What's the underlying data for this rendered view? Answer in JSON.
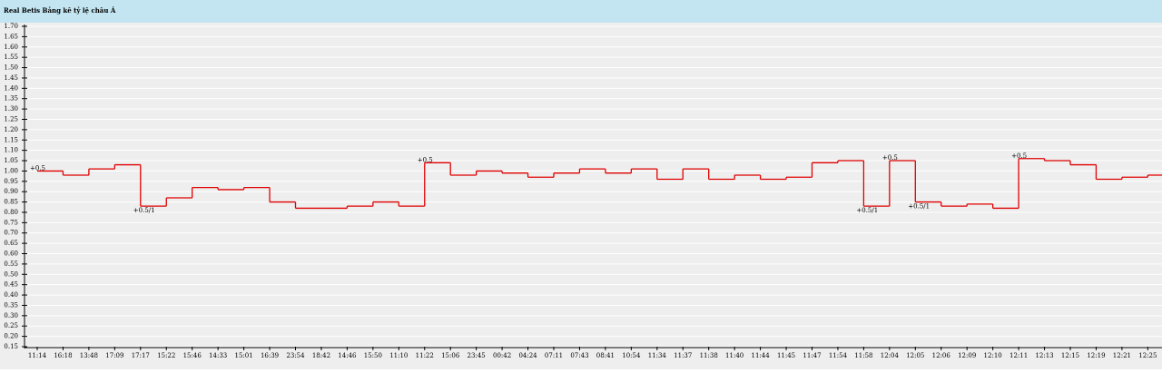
{
  "chart_data": {
    "type": "step-line",
    "title": "Real Betis Bảng kê tỷ lệ châu Á",
    "categories": [
      "11:14",
      "16:18",
      "13:48",
      "17:09",
      "17:17",
      "15:22",
      "15:46",
      "14:33",
      "15:01",
      "16:39",
      "23:54",
      "18:42",
      "14:46",
      "15:50",
      "11:10",
      "11:22",
      "15:06",
      "23:45",
      "00:42",
      "04:24",
      "07:11",
      "07:43",
      "08:41",
      "10:54",
      "11:34",
      "11:37",
      "11:38",
      "11:40",
      "11:44",
      "11:45",
      "11:47",
      "11:54",
      "11:58",
      "12:04",
      "12:05",
      "12:06",
      "12:09",
      "12:10",
      "12:11",
      "12:13",
      "12:15",
      "12:19",
      "12:21",
      "12:25"
    ],
    "values": [
      1.0,
      0.98,
      1.01,
      1.03,
      0.83,
      0.87,
      0.92,
      0.91,
      0.92,
      0.85,
      0.82,
      0.82,
      0.83,
      0.85,
      0.83,
      1.04,
      0.98,
      1.0,
      0.99,
      0.97,
      0.99,
      1.01,
      0.99,
      1.01,
      0.96,
      1.01,
      0.96,
      0.98,
      0.96,
      0.97,
      1.04,
      1.05,
      0.83,
      1.05,
      0.85,
      0.83,
      0.84,
      0.82,
      1.06,
      1.05,
      1.03,
      0.96,
      0.97,
      0.98
    ],
    "color": "#e00000",
    "annotations": [
      {
        "category": "11:14",
        "text": "+0.5"
      },
      {
        "category": "17:17",
        "text": "+0.5/1"
      },
      {
        "category": "11:22",
        "text": "+0.5"
      },
      {
        "category": "11:58",
        "text": "+0.5/1"
      },
      {
        "category": "12:04",
        "text": "+0.5"
      },
      {
        "category": "12:05",
        "text": "+0.5/1"
      },
      {
        "category": "12:11",
        "text": "+0.5"
      }
    ],
    "ylim": [
      0.15,
      1.7
    ],
    "yticks": [
      {
        "value": 0.15,
        "label": "0.15"
      },
      {
        "value": 0.2,
        "label": "0.20"
      },
      {
        "value": 0.25,
        "label": "0.25"
      },
      {
        "value": 0.3,
        "label": "0.30"
      },
      {
        "value": 0.35,
        "label": "0.35"
      },
      {
        "value": 0.4,
        "label": "0.40"
      },
      {
        "value": 0.45,
        "label": "0.45"
      },
      {
        "value": 0.5,
        "label": "0.50"
      },
      {
        "value": 0.55,
        "label": "0.55"
      },
      {
        "value": 0.6,
        "label": "0.60"
      },
      {
        "value": 0.65,
        "label": "0.65"
      },
      {
        "value": 0.7,
        "label": "0.70"
      },
      {
        "value": 0.75,
        "label": "0.75"
      },
      {
        "value": 0.8,
        "label": "0.80"
      },
      {
        "value": 0.85,
        "label": "0.85"
      },
      {
        "value": 0.9,
        "label": "0.90"
      },
      {
        "value": 0.95,
        "label": "0.95"
      },
      {
        "value": 1.0,
        "label": "1.00"
      },
      {
        "value": 1.05,
        "label": "1.05"
      },
      {
        "value": 1.1,
        "label": "1.10"
      },
      {
        "value": 1.15,
        "label": "1.15"
      },
      {
        "value": 1.2,
        "label": "1.20"
      },
      {
        "value": 1.25,
        "label": "1.25"
      },
      {
        "value": 1.3,
        "label": "1.30"
      },
      {
        "value": 1.35,
        "label": "1.35"
      },
      {
        "value": 1.4,
        "label": "1.40"
      },
      {
        "value": 1.45,
        "label": "1.45"
      },
      {
        "value": 1.5,
        "label": "1.50"
      },
      {
        "value": 1.55,
        "label": "1.55"
      },
      {
        "value": 1.6,
        "label": "1.60"
      },
      {
        "value": 1.65,
        "label": "1.65"
      },
      {
        "value": 1.7,
        "label": "1.70"
      }
    ],
    "grid": true
  }
}
